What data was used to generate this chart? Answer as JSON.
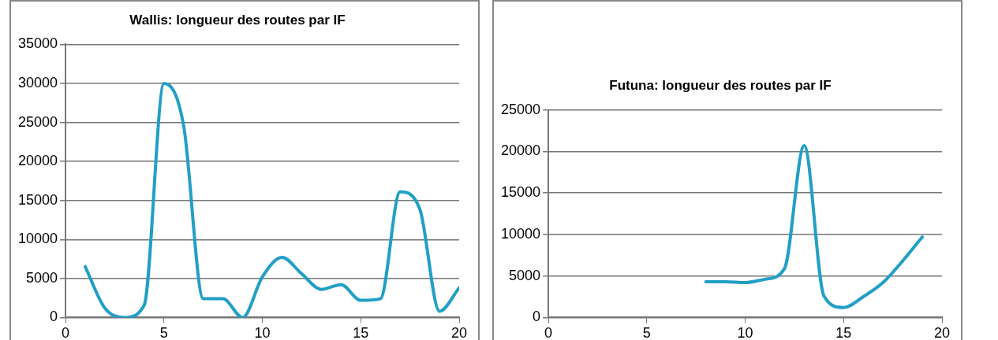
{
  "chart_data": [
    {
      "type": "line",
      "title": "Wallis: longueur des routes par IF",
      "x": [
        1,
        2,
        3,
        4,
        5,
        6,
        7,
        8,
        9,
        10,
        11,
        12,
        13,
        14,
        15,
        16,
        17,
        18,
        19,
        20
      ],
      "series": [
        {
          "color": "#229fc6",
          "values": [
            6500,
            1200,
            0,
            1600,
            30000,
            24600,
            2400,
            2400,
            0,
            5200,
            7700,
            5600,
            3600,
            4200,
            2200,
            2400,
            16100,
            13900,
            800,
            3800
          ]
        }
      ],
      "xlim": [
        0,
        20
      ],
      "xticks": [
        0,
        5,
        10,
        15,
        20
      ],
      "ylim": [
        0,
        35000
      ],
      "yticks": [
        0,
        5000,
        10000,
        15000,
        20000,
        25000,
        30000,
        35000
      ],
      "grid": "y",
      "legend": false,
      "marker": "none",
      "line_style": "solid"
    },
    {
      "type": "line",
      "title": "Futuna: longueur des routes par IF",
      "x": [
        8,
        9,
        10,
        11,
        12,
        13,
        14,
        15,
        16,
        17,
        18,
        19
      ],
      "series": [
        {
          "color": "#229fc6",
          "values": [
            4300,
            4300,
            4200,
            4600,
            5900,
            20700,
            2600,
            1200,
            2500,
            4200,
            6800,
            9700
          ]
        }
      ],
      "xlim": [
        0,
        20
      ],
      "xticks": [
        0,
        5,
        10,
        15,
        20
      ],
      "ylim": [
        0,
        25000
      ],
      "yticks": [
        0,
        5000,
        10000,
        15000,
        20000,
        25000
      ],
      "grid": "y",
      "legend": false,
      "marker": "none",
      "line_style": "solid"
    }
  ]
}
